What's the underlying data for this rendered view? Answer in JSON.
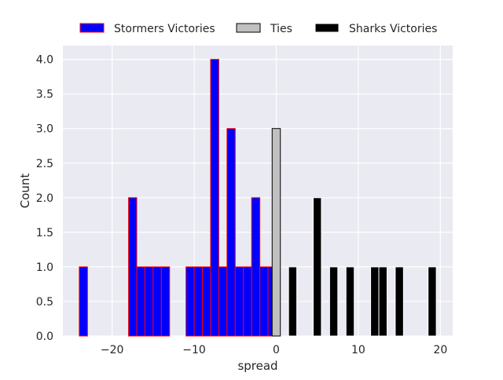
{
  "chart_data": {
    "type": "bar",
    "xlabel": "spread",
    "ylabel": "Count",
    "xlim": [
      -26,
      21.5
    ],
    "ylim": [
      0,
      4.2
    ],
    "x_ticks": [
      -20,
      -10,
      0,
      10,
      20
    ],
    "x_tick_labels": [
      "−20",
      "−10",
      "0",
      "10",
      "20"
    ],
    "y_ticks": [
      0,
      0.5,
      1,
      1.5,
      2,
      2.5,
      3,
      3.5,
      4
    ],
    "y_tick_labels": [
      "0.0",
      "0.5",
      "1.0",
      "1.5",
      "2.0",
      "2.5",
      "3.0",
      "3.5",
      "4.0"
    ],
    "grid": true,
    "legend_position": "top",
    "background_color": "#eaeaf2",
    "grid_color": "#ffffff",
    "bin_width": 1,
    "series": [
      {
        "name": "Stormers Victories",
        "color": "#0000ff",
        "edge_color": "#ff0000",
        "bins": [
          {
            "x": -24,
            "count": 1
          },
          {
            "x": -18,
            "count": 2
          },
          {
            "x": -17,
            "count": 1
          },
          {
            "x": -16,
            "count": 1
          },
          {
            "x": -15,
            "count": 1
          },
          {
            "x": -14,
            "count": 1
          },
          {
            "x": -11,
            "count": 1
          },
          {
            "x": -10,
            "count": 1
          },
          {
            "x": -9,
            "count": 1
          },
          {
            "x": -8,
            "count": 4
          },
          {
            "x": -7,
            "count": 1
          },
          {
            "x": -6,
            "count": 3
          },
          {
            "x": -5,
            "count": 1
          },
          {
            "x": -4,
            "count": 1
          },
          {
            "x": -3,
            "count": 2
          },
          {
            "x": -2,
            "count": 1
          },
          {
            "x": -1,
            "count": 1
          }
        ]
      },
      {
        "name": "Ties",
        "color": "#c0c0c0",
        "edge_color": "#000000",
        "bins": [
          {
            "x": -0.5,
            "count": 3
          }
        ]
      },
      {
        "name": "Sharks Victories",
        "color": "#000000",
        "edge_color": "#ffffff",
        "bins": [
          {
            "x": 1.5,
            "count": 1
          },
          {
            "x": 4.5,
            "count": 2
          },
          {
            "x": 6.5,
            "count": 1
          },
          {
            "x": 8.5,
            "count": 1
          },
          {
            "x": 11.5,
            "count": 1
          },
          {
            "x": 12.5,
            "count": 1
          },
          {
            "x": 14.5,
            "count": 1
          },
          {
            "x": 18.5,
            "count": 1
          }
        ]
      }
    ]
  }
}
